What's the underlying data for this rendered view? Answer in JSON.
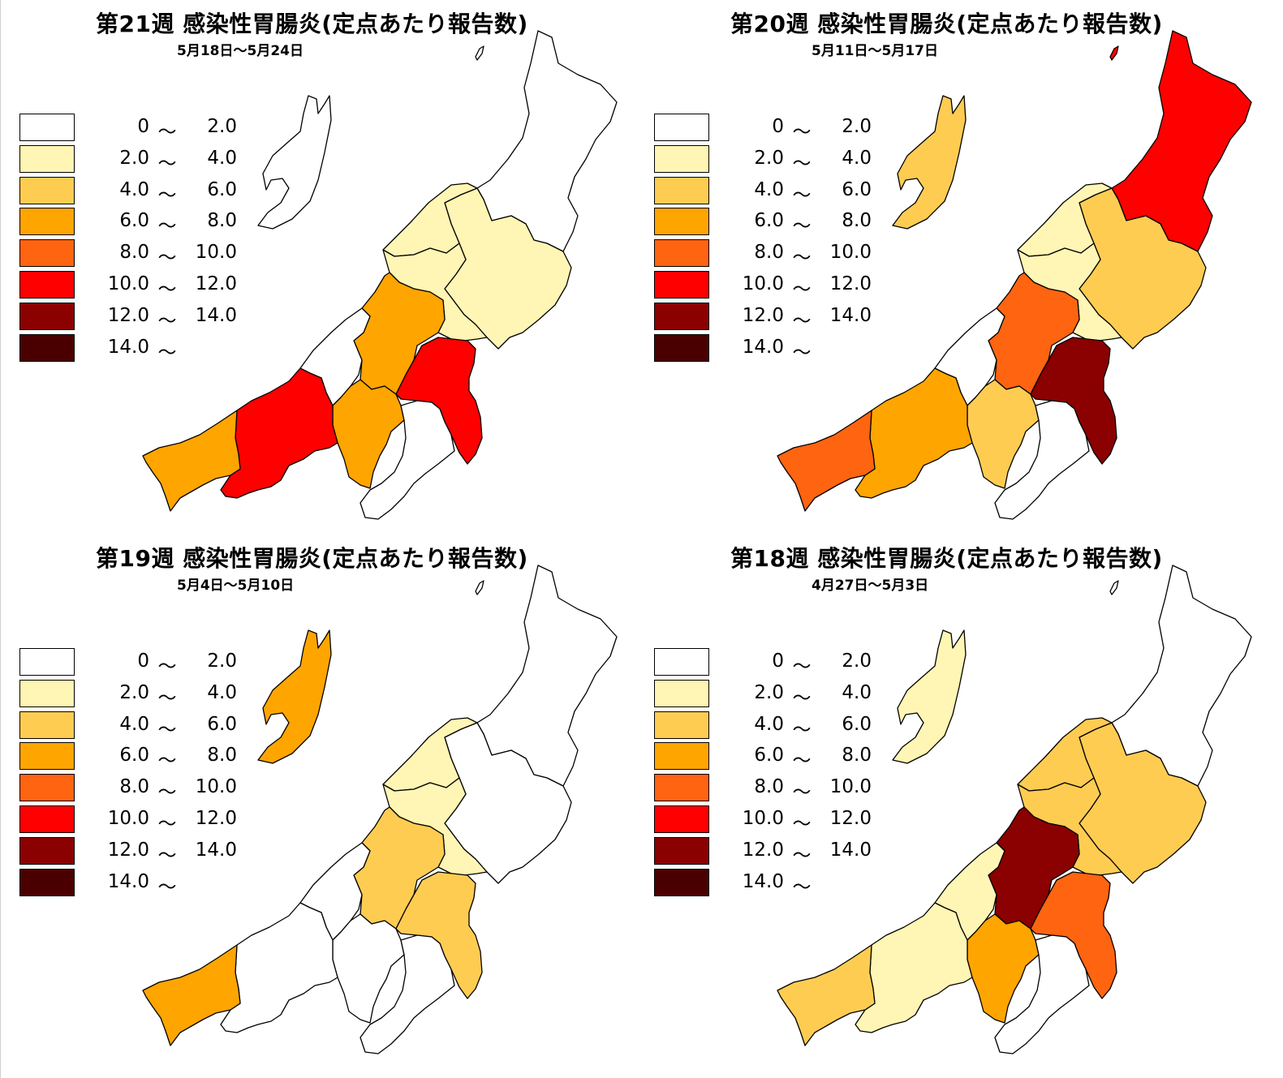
{
  "legend": {
    "ranges": [
      {
        "lo": "0",
        "tilde": "～",
        "hi": "2.0",
        "color": "#FFFFFF"
      },
      {
        "lo": "2.0",
        "tilde": "～",
        "hi": "4.0",
        "color": "#FFF5B4"
      },
      {
        "lo": "4.0",
        "tilde": "～",
        "hi": "6.0",
        "color": "#FFCC52"
      },
      {
        "lo": "6.0",
        "tilde": "～",
        "hi": "8.0",
        "color": "#FFA500"
      },
      {
        "lo": "8.0",
        "tilde": "～",
        "hi": "10.0",
        "color": "#FF6410"
      },
      {
        "lo": "10.0",
        "tilde": "～",
        "hi": "12.0",
        "color": "#FF0000"
      },
      {
        "lo": "12.0",
        "tilde": "～",
        "hi": "14.0",
        "color": "#8B0000"
      },
      {
        "lo": "14.0",
        "tilde": "～",
        "hi": "",
        "color": "#4A0000"
      }
    ]
  },
  "panels": [
    {
      "title": "第21週 感染性胃腸炎(定点あたり報告数)",
      "dates": "5月18日～5月24日",
      "regions": {
        "awashima": 0,
        "murakami": 0,
        "shibata": 1,
        "niigata_city": 1,
        "sanjo": 1,
        "sado": 0,
        "kashiwazaki": 0,
        "nagaoka": 3,
        "uonuma": 5,
        "minamiuonuma": 0,
        "tokamachi": 3,
        "joetsu": 5,
        "itoigawa": 3
      }
    },
    {
      "title": "第20週 感染性胃腸炎(定点あたり報告数)",
      "dates": "5月11日～5月17日",
      "regions": {
        "awashima": 5,
        "murakami": 5,
        "shibata": 2,
        "niigata_city": 1,
        "sanjo": 1,
        "sado": 2,
        "kashiwazaki": 0,
        "nagaoka": 4,
        "uonuma": 6,
        "minamiuonuma": 0,
        "tokamachi": 2,
        "joetsu": 3,
        "itoigawa": 4
      }
    },
    {
      "title": "第19週 感染性胃腸炎(定点あたり報告数)",
      "dates": "5月4日～5月10日",
      "regions": {
        "awashima": 0,
        "murakami": 0,
        "shibata": 0,
        "niigata_city": 1,
        "sanjo": 1,
        "sado": 3,
        "kashiwazaki": 0,
        "nagaoka": 2,
        "uonuma": 2,
        "minamiuonuma": 0,
        "tokamachi": 0,
        "joetsu": 0,
        "itoigawa": 3
      }
    },
    {
      "title": "第18週 感染性胃腸炎(定点あたり報告数)",
      "dates": "4月27日～5月3日",
      "regions": {
        "awashima": 0,
        "murakami": 0,
        "shibata": 2,
        "niigata_city": 2,
        "sanjo": 2,
        "sado": 1,
        "kashiwazaki": 1,
        "nagaoka": 6,
        "uonuma": 4,
        "minamiuonuma": 0,
        "tokamachi": 3,
        "joetsu": 1,
        "itoigawa": 2
      }
    }
  ]
}
